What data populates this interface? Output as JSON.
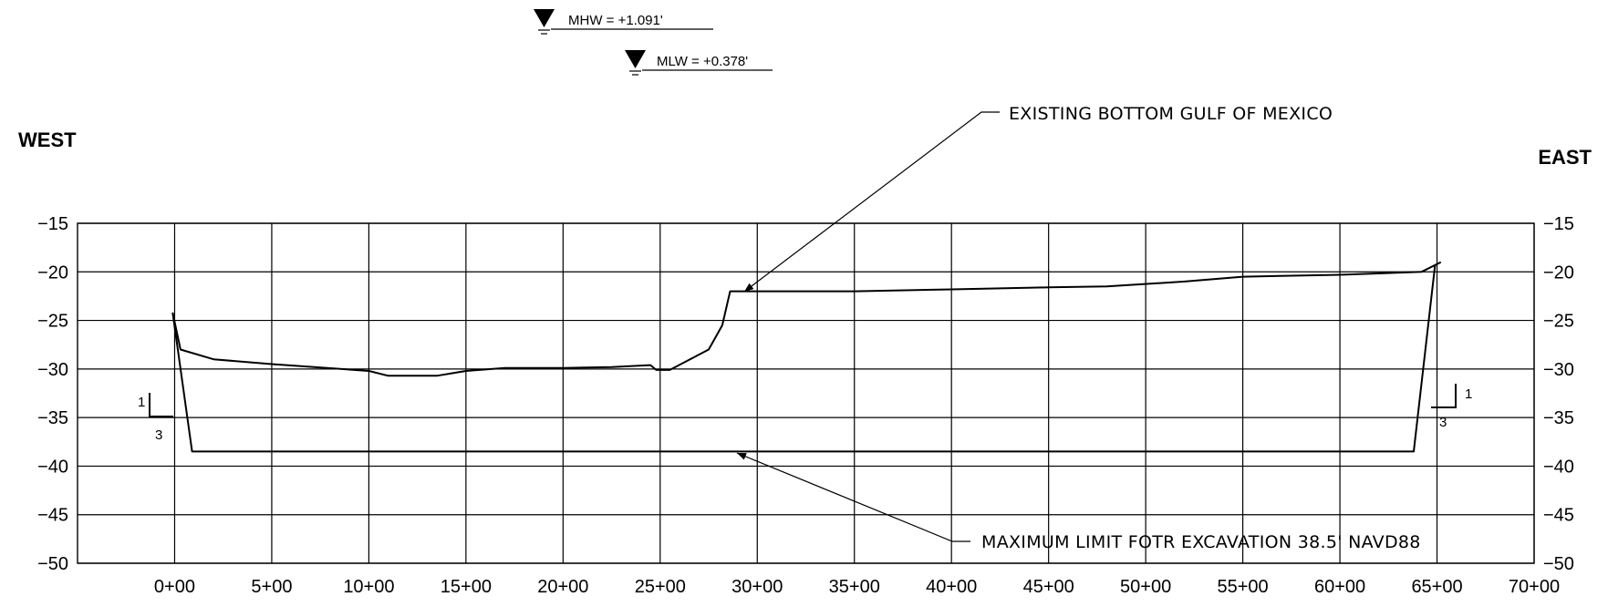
{
  "labels": {
    "west": "WEST",
    "east": "EAST"
  },
  "water_levels": [
    {
      "label": "MHW = +1.091'",
      "elevation": 1.091
    },
    {
      "label": "MLW = +0.378'",
      "elevation": 0.378
    }
  ],
  "callouts": {
    "existing_bottom": "EXISTING BOTTOM GULF OF MEXICO",
    "max_limit": "MAXIMUM LIMIT FOTR EXCAVATION 38.5' NAVD88"
  },
  "slope_marks": {
    "west": {
      "rise": "1",
      "run": "3"
    },
    "east": {
      "rise": "1",
      "run": "3"
    }
  },
  "chart_data": {
    "type": "line",
    "x_ticks": [
      "0+00",
      "5+00",
      "10+00",
      "15+00",
      "20+00",
      "25+00",
      "30+00",
      "35+00",
      "40+00",
      "45+00",
      "50+00",
      "55+00",
      "60+00",
      "65+00",
      "70+00"
    ],
    "y_ticks": [
      "-15",
      "-20",
      "-25",
      "-30",
      "-35",
      "-40",
      "-45",
      "-50"
    ],
    "xlim": [
      -5,
      70
    ],
    "ylim": [
      -50,
      -15
    ],
    "grid": true,
    "series": [
      {
        "role": "existing-bottom",
        "x": [
          -0.1,
          0.3,
          2,
          5,
          10,
          11,
          13.5,
          15,
          17,
          20,
          22.5,
          24.5,
          24.8,
          25.5,
          27.5,
          28.2,
          28.6,
          29.3,
          30,
          35,
          40,
          45,
          48,
          52,
          55,
          60,
          64.2,
          65.2
        ],
        "y": [
          -24.2,
          -28,
          -29,
          -29.5,
          -30.2,
          -30.7,
          -30.7,
          -30.2,
          -29.9,
          -29.9,
          -29.8,
          -29.6,
          -30.1,
          -30.1,
          -28,
          -25.5,
          -22,
          -22,
          -22,
          -22,
          -21.8,
          -21.6,
          -21.5,
          -21,
          -20.5,
          -20.3,
          -20,
          -19
        ]
      },
      {
        "role": "excavation-limit",
        "x": [
          -0.1,
          0.9,
          63.8,
          64.9
        ],
        "y": [
          -24.2,
          -38.5,
          -38.5,
          -19.3
        ]
      }
    ]
  }
}
